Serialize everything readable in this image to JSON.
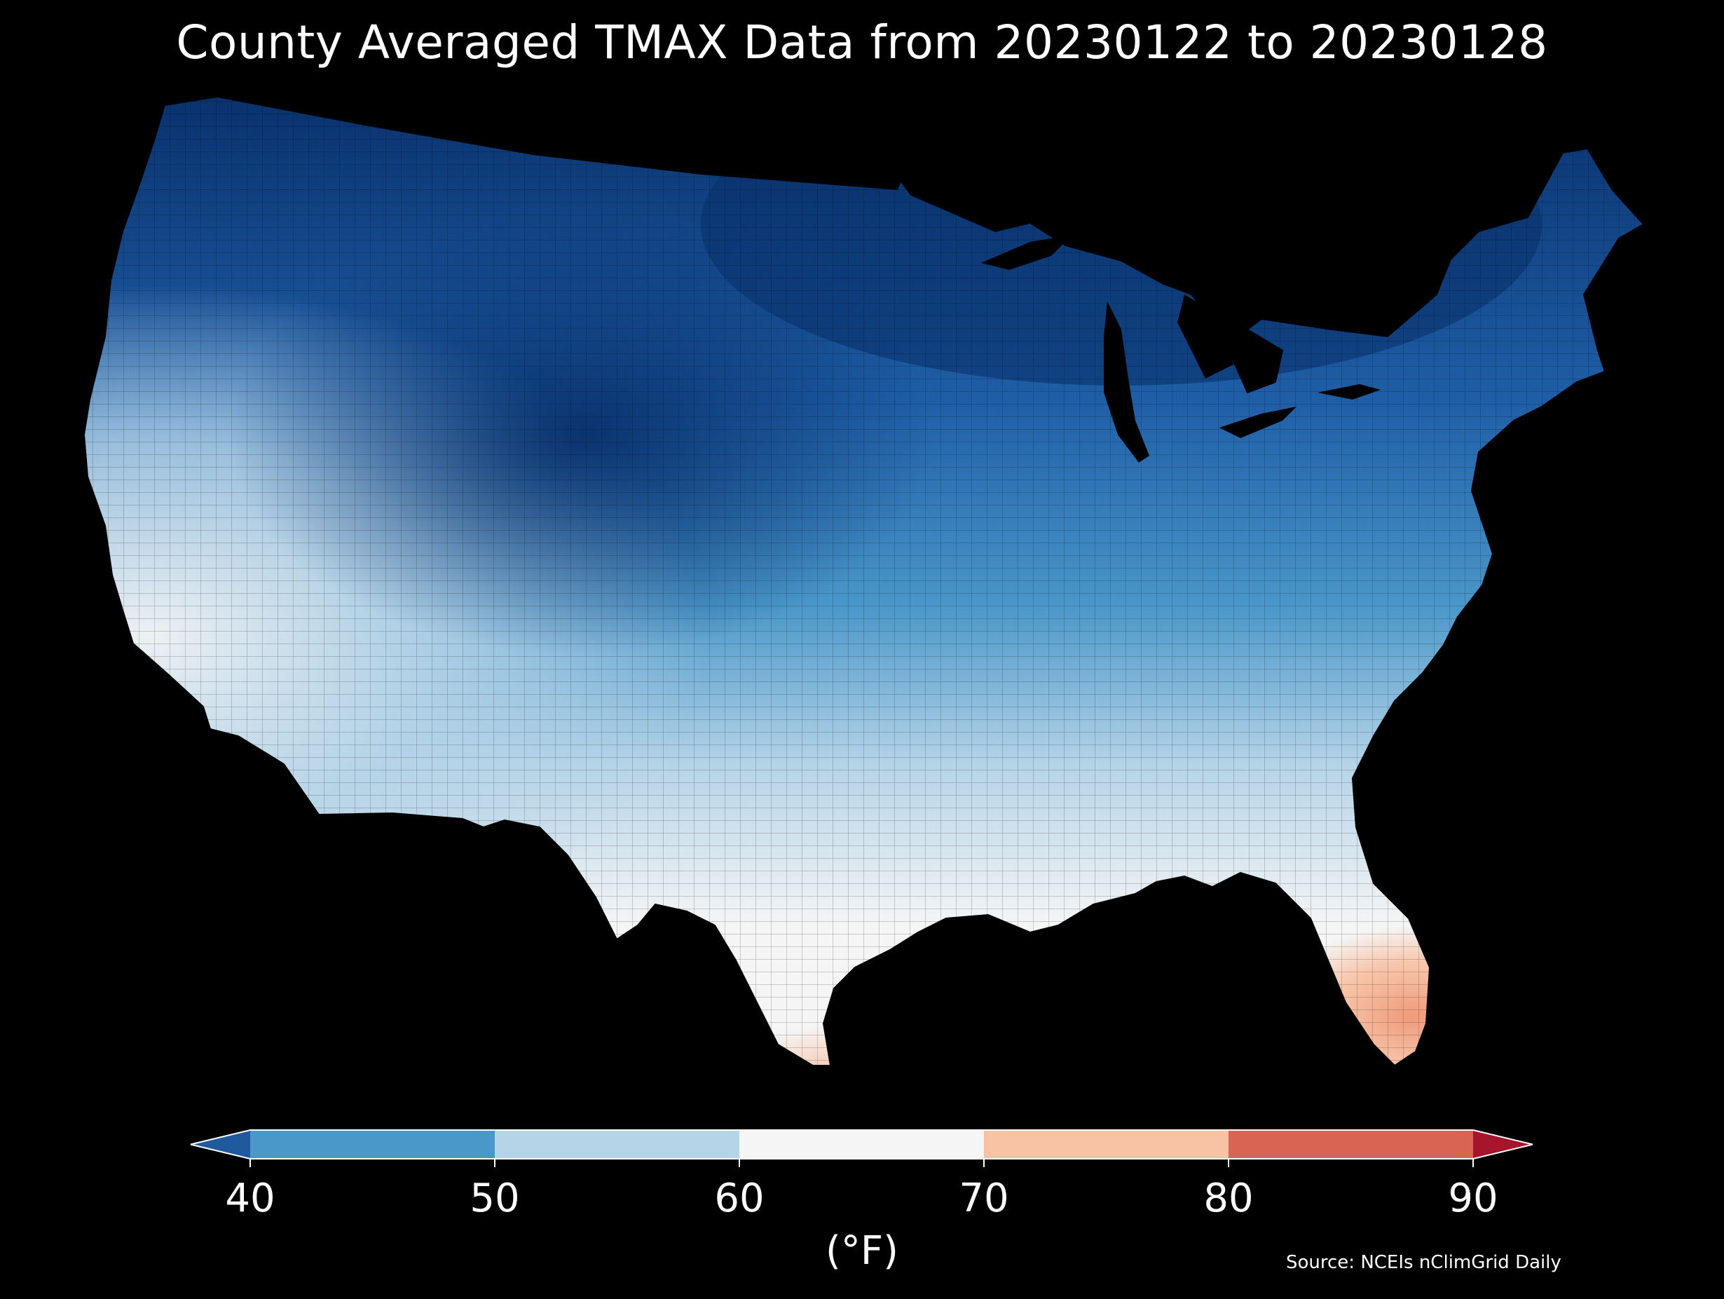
{
  "title": "County Averaged TMAX Data from 20230122 to 20230128",
  "colorbar": {
    "units_label": "(°F)",
    "ticks": [
      "40",
      "50",
      "60",
      "70",
      "80",
      "90"
    ],
    "bins": [
      {
        "from": 40,
        "to": 50,
        "color": "#4a97c9"
      },
      {
        "from": 50,
        "to": 60,
        "color": "#b6d4e8"
      },
      {
        "from": 60,
        "to": 70,
        "color": "#f5f5f5"
      },
      {
        "from": 70,
        "to": 80,
        "color": "#f8c2a4"
      },
      {
        "from": 80,
        "to": 90,
        "color": "#da6454"
      }
    ],
    "under_color": "#1f5a9e",
    "over_color": "#a6152c",
    "extend": "both"
  },
  "source": "Source: NCEIs nClimGrid Daily",
  "map": {
    "region": "contiguous-united-states",
    "shading": "county-averaged-tmax",
    "palette": {
      "coldest": "#08306b",
      "cold": "#1f5fa8",
      "cool": "#4a97c9",
      "mild": "#b6d4e8",
      "neutral": "#f5f5f5",
      "warm": "#f8c2a4",
      "warmer": "#ef9a7a"
    }
  }
}
